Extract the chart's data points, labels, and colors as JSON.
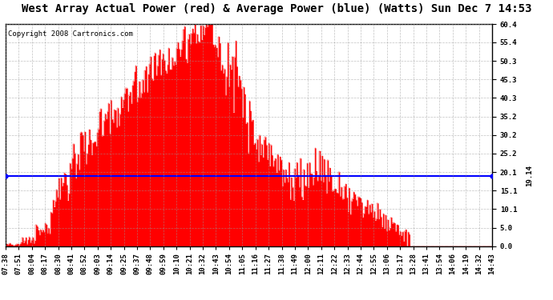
{
  "title": "West Array Actual Power (red) & Average Power (blue) (Watts) Sun Dec 7 14:53",
  "copyright": "Copyright 2008 Cartronics.com",
  "avg_power": 19.14,
  "avg_label": "19.14",
  "y_max": 60.4,
  "y_min": 0.0,
  "yticks": [
    0.0,
    5.0,
    10.1,
    15.1,
    20.1,
    25.2,
    30.2,
    35.2,
    40.3,
    45.3,
    50.3,
    55.4,
    60.4
  ],
  "xtick_labels": [
    "07:38",
    "07:51",
    "08:04",
    "08:17",
    "08:30",
    "08:41",
    "08:52",
    "09:03",
    "09:14",
    "09:25",
    "09:37",
    "09:48",
    "09:59",
    "10:10",
    "10:21",
    "10:32",
    "10:43",
    "10:54",
    "11:05",
    "11:16",
    "11:27",
    "11:38",
    "11:49",
    "12:00",
    "12:11",
    "12:22",
    "12:33",
    "12:44",
    "12:55",
    "13:06",
    "13:17",
    "13:28",
    "13:41",
    "13:54",
    "14:06",
    "14:19",
    "14:32",
    "14:43"
  ],
  "red_color": "#ff0000",
  "blue_color": "#0000ff",
  "dashed_red_color": "#ff0000",
  "bg_color": "#ffffff",
  "grid_color": "#999999",
  "border_color": "#000000",
  "title_fontsize": 10,
  "copyright_fontsize": 6.5,
  "avg_label_fontsize": 6.5,
  "tick_fontsize": 6.5
}
